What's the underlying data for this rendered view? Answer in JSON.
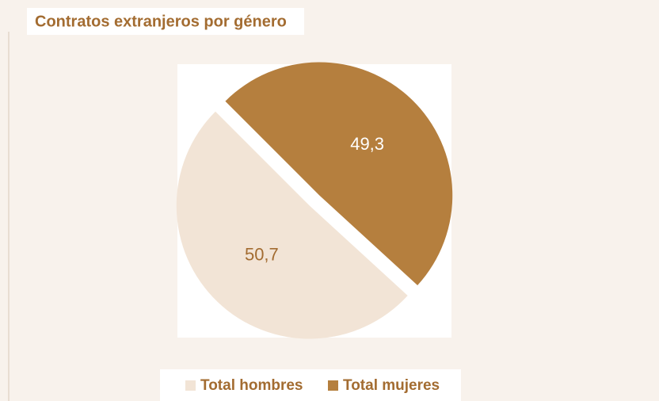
{
  "chart_data": {
    "type": "pie",
    "title": "Contratos extranjeros por género",
    "categories": [
      "Total hombres",
      "Total mujeres"
    ],
    "values": [
      50.7,
      49.3
    ],
    "value_labels": [
      "50,7",
      "49,3"
    ],
    "colors": [
      "#f2e4d6",
      "#b57f3e"
    ]
  }
}
